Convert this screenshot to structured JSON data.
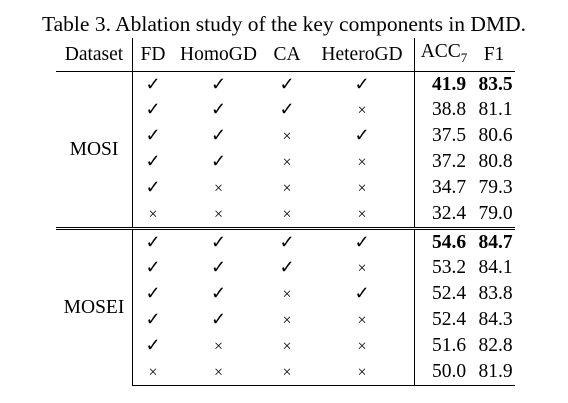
{
  "caption": "Table 3. Ablation study of the key components in DMD.",
  "headers": {
    "dataset": "Dataset",
    "fd": "FD",
    "homogd": "HomoGD",
    "ca": "CA",
    "heterogd": "HeteroGD",
    "acc": "ACC",
    "acc_sub": "7",
    "f1": "F1"
  },
  "symbols": {
    "yes": "✓",
    "no": "×"
  },
  "groups": [
    {
      "dataset": "MOSI",
      "rows": [
        {
          "fd": "✓",
          "homogd": "✓",
          "ca": "✓",
          "heterogd": "✓",
          "acc": "41.9",
          "f1": "83.5",
          "bold": true
        },
        {
          "fd": "✓",
          "homogd": "✓",
          "ca": "✓",
          "heterogd": "×",
          "acc": "38.8",
          "f1": "81.1",
          "bold": false
        },
        {
          "fd": "✓",
          "homogd": "✓",
          "ca": "×",
          "heterogd": "✓",
          "acc": "37.5",
          "f1": "80.6",
          "bold": false
        },
        {
          "fd": "✓",
          "homogd": "✓",
          "ca": "×",
          "heterogd": "×",
          "acc": "37.2",
          "f1": "80.8",
          "bold": false
        },
        {
          "fd": "✓",
          "homogd": "×",
          "ca": "×",
          "heterogd": "×",
          "acc": "34.7",
          "f1": "79.3",
          "bold": false
        },
        {
          "fd": "×",
          "homogd": "×",
          "ca": "×",
          "heterogd": "×",
          "acc": "32.4",
          "f1": "79.0",
          "bold": false
        }
      ]
    },
    {
      "dataset": "MOSEI",
      "rows": [
        {
          "fd": "✓",
          "homogd": "✓",
          "ca": "✓",
          "heterogd": "✓",
          "acc": "54.6",
          "f1": "84.7",
          "bold": true
        },
        {
          "fd": "✓",
          "homogd": "✓",
          "ca": "✓",
          "heterogd": "×",
          "acc": "53.2",
          "f1": "84.1",
          "bold": false
        },
        {
          "fd": "✓",
          "homogd": "✓",
          "ca": "×",
          "heterogd": "✓",
          "acc": "52.4",
          "f1": "83.8",
          "bold": false
        },
        {
          "fd": "✓",
          "homogd": "✓",
          "ca": "×",
          "heterogd": "×",
          "acc": "52.4",
          "f1": "84.3",
          "bold": false
        },
        {
          "fd": "✓",
          "homogd": "×",
          "ca": "×",
          "heterogd": "×",
          "acc": "51.6",
          "f1": "82.8",
          "bold": false
        },
        {
          "fd": "×",
          "homogd": "×",
          "ca": "×",
          "heterogd": "×",
          "acc": "50.0",
          "f1": "81.9",
          "bold": false
        }
      ]
    }
  ]
}
